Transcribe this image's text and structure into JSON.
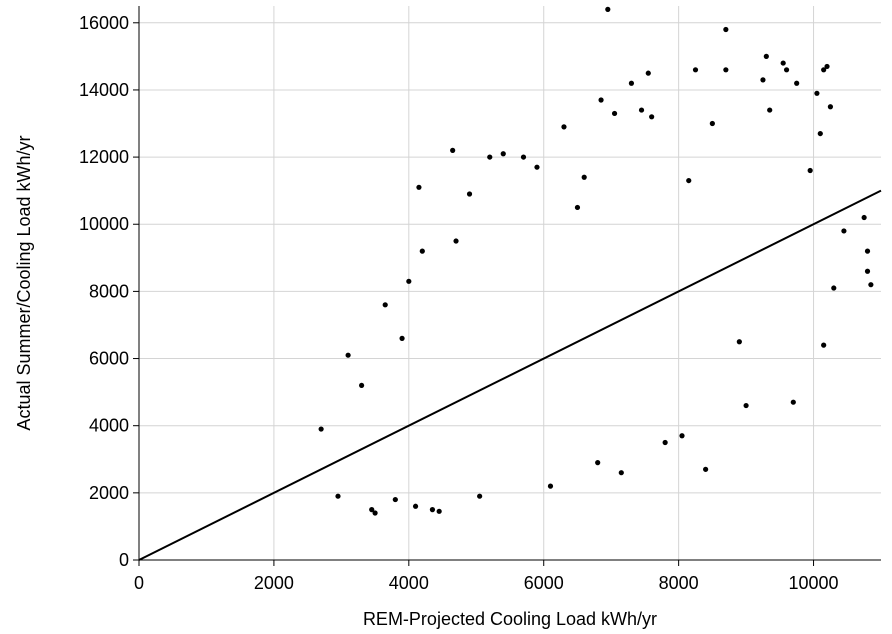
{
  "chart_data": {
    "type": "scatter",
    "title": "",
    "xlabel": "REM-Projected Cooling Load kWh/yr",
    "ylabel": "Actual Summer/Cooling Load kWh/yr",
    "xlim": [
      0,
      11000
    ],
    "ylim": [
      0,
      16500
    ],
    "x_ticks": [
      0,
      2000,
      4000,
      6000,
      8000,
      10000
    ],
    "y_ticks": [
      0,
      2000,
      4000,
      6000,
      8000,
      10000,
      12000,
      14000,
      16000
    ],
    "x_tick_labels": [
      "0",
      "2000",
      "4000",
      "6000",
      "8000",
      "10000"
    ],
    "y_tick_labels": [
      "0",
      "2000",
      "4000",
      "6000",
      "8000",
      "10000",
      "12000",
      "14000",
      "16000"
    ],
    "grid": true,
    "point_color": "#000000",
    "fit_line": {
      "x": [
        0,
        11000
      ],
      "y": [
        0,
        11000
      ]
    },
    "series": [
      {
        "values": [
          [
            2700,
            3900
          ],
          [
            2950,
            1900
          ],
          [
            3100,
            6100
          ],
          [
            3300,
            5200
          ],
          [
            3450,
            1500
          ],
          [
            3500,
            1400
          ],
          [
            3650,
            7600
          ],
          [
            3800,
            1800
          ],
          [
            3900,
            6600
          ],
          [
            4000,
            8300
          ],
          [
            4100,
            1600
          ],
          [
            4150,
            11100
          ],
          [
            4200,
            9200
          ],
          [
            4350,
            1500
          ],
          [
            4450,
            1450
          ],
          [
            4650,
            12200
          ],
          [
            4700,
            9500
          ],
          [
            4900,
            10900
          ],
          [
            5050,
            1900
          ],
          [
            5200,
            12000
          ],
          [
            5400,
            12100
          ],
          [
            5700,
            12000
          ],
          [
            5900,
            11700
          ],
          [
            6100,
            2200
          ],
          [
            6300,
            12900
          ],
          [
            6500,
            10500
          ],
          [
            6600,
            11400
          ],
          [
            6800,
            2900
          ],
          [
            6850,
            13700
          ],
          [
            6950,
            16400
          ],
          [
            7050,
            13300
          ],
          [
            7150,
            2600
          ],
          [
            7300,
            14200
          ],
          [
            7450,
            13400
          ],
          [
            7550,
            14500
          ],
          [
            7600,
            13200
          ],
          [
            7800,
            3500
          ],
          [
            8050,
            3700
          ],
          [
            8150,
            11300
          ],
          [
            8250,
            14600
          ],
          [
            8400,
            2700
          ],
          [
            8500,
            13000
          ],
          [
            8700,
            15800
          ],
          [
            8700,
            14600
          ],
          [
            8900,
            6500
          ],
          [
            9000,
            4600
          ],
          [
            9250,
            14300
          ],
          [
            9300,
            15000
          ],
          [
            9350,
            13400
          ],
          [
            9550,
            14800
          ],
          [
            9600,
            14600
          ],
          [
            9700,
            4700
          ],
          [
            9750,
            14200
          ],
          [
            9950,
            11600
          ],
          [
            10050,
            13900
          ],
          [
            10150,
            14600
          ],
          [
            10200,
            14700
          ],
          [
            10150,
            6400
          ],
          [
            10250,
            13500
          ],
          [
            10300,
            8100
          ],
          [
            10450,
            9800
          ],
          [
            10750,
            10200
          ],
          [
            10800,
            8600
          ],
          [
            10850,
            8200
          ],
          [
            10800,
            9200
          ],
          [
            10100,
            12700
          ]
        ]
      }
    ]
  }
}
